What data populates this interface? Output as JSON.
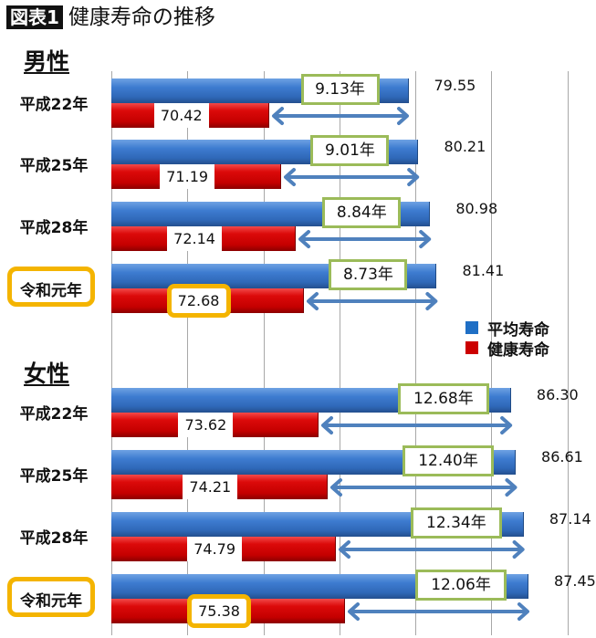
{
  "figure": {
    "badge": "図表1",
    "title": "健康寿命の推移"
  },
  "colors": {
    "average": "#3e7cd0",
    "healthy": "#cc0000",
    "highlight": "#f4b400",
    "diff_border": "#9bbb59",
    "arrow": "#4f81bd"
  },
  "legend": [
    {
      "label": "平均寿命",
      "color": "#1f6fc5"
    },
    {
      "label": "健康寿命",
      "color": "#cc0000"
    }
  ],
  "sections": {
    "male": {
      "label": "男性"
    },
    "female": {
      "label": "女性"
    }
  },
  "rows": [
    {
      "label": "平成22年",
      "avg": "79.55",
      "healthy": "70.42",
      "diff": "9.13年"
    },
    {
      "label": "平成25年",
      "avg": "80.21",
      "healthy": "71.19",
      "diff": "9.01年"
    },
    {
      "label": "平成28年",
      "avg": "80.98",
      "healthy": "72.14",
      "diff": "8.84年"
    },
    {
      "label": "令和元年",
      "avg": "81.41",
      "healthy": "72.68",
      "diff": "8.73年"
    },
    {
      "label": "平成22年",
      "avg": "86.30",
      "healthy": "73.62",
      "diff": "12.68年"
    },
    {
      "label": "平成25年",
      "avg": "86.61",
      "healthy": "74.21",
      "diff": "12.40年"
    },
    {
      "label": "平成28年",
      "avg": "87.14",
      "healthy": "74.79",
      "diff": "12.34年"
    },
    {
      "label": "令和元年",
      "avg": "87.45",
      "healthy": "75.38",
      "diff": "12.06年"
    }
  ],
  "chart_data": {
    "type": "bar",
    "orientation": "horizontal",
    "title": "図表1 健康寿命の推移",
    "xlabel": "",
    "ylabel": "",
    "xlim": [
      60,
      95
    ],
    "grid": true,
    "gridline_step": 5,
    "legend_position": "right",
    "groups": [
      {
        "name": "男性",
        "categories": [
          "平成22年",
          "平成25年",
          "平成28年",
          "令和元年"
        ],
        "series": [
          {
            "name": "平均寿命",
            "values": [
              79.55,
              80.21,
              80.98,
              81.41
            ]
          },
          {
            "name": "健康寿命",
            "values": [
              70.42,
              71.19,
              72.14,
              72.68
            ]
          }
        ],
        "differences": [
          9.13,
          9.01,
          8.84,
          8.73
        ]
      },
      {
        "name": "女性",
        "categories": [
          "平成22年",
          "平成25年",
          "平成28年",
          "令和元年"
        ],
        "series": [
          {
            "name": "平均寿命",
            "values": [
              86.3,
              86.61,
              87.14,
              87.45
            ]
          },
          {
            "name": "健康寿命",
            "values": [
              73.62,
              74.21,
              74.79,
              75.38
            ]
          }
        ],
        "differences": [
          12.68,
          12.4,
          12.34,
          12.06
        ]
      }
    ],
    "annotations": [
      "令和元年 highlighted",
      "健康寿命 72.68 highlighted",
      "健康寿命 75.38 highlighted"
    ]
  }
}
